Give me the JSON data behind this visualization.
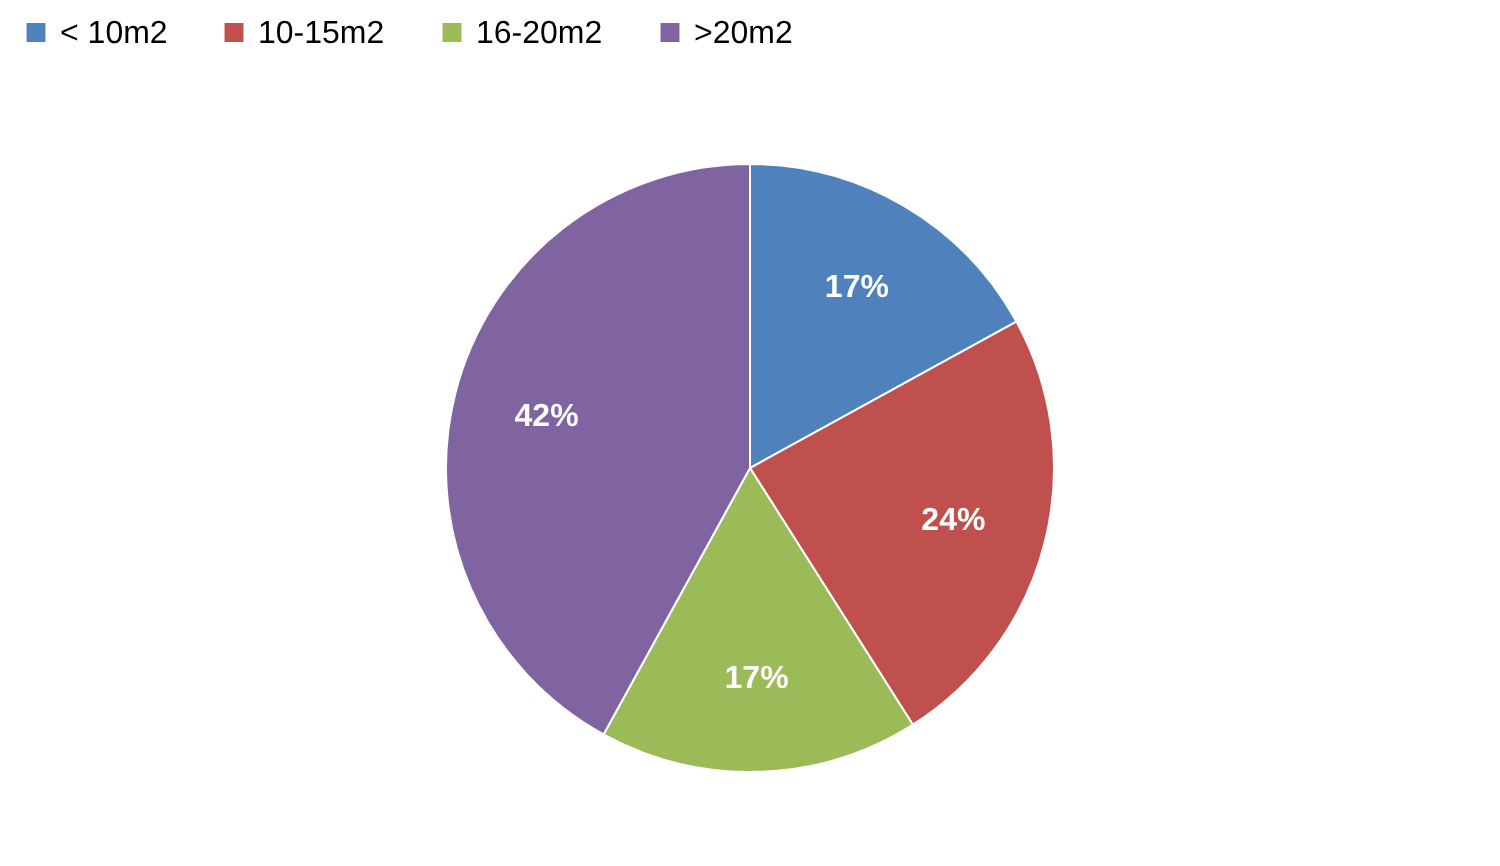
{
  "chart_data": {
    "type": "pie",
    "categories": [
      "< 10m2",
      "10-15m2",
      "16-20m2",
      ">20m2"
    ],
    "values": [
      17,
      24,
      17,
      42
    ],
    "colors": [
      "#4f81bd",
      "#c0504d",
      "#9bbb59",
      "#8064a2"
    ],
    "value_labels": [
      "17%",
      "24%",
      "17%",
      "42%"
    ],
    "legend": "top"
  }
}
